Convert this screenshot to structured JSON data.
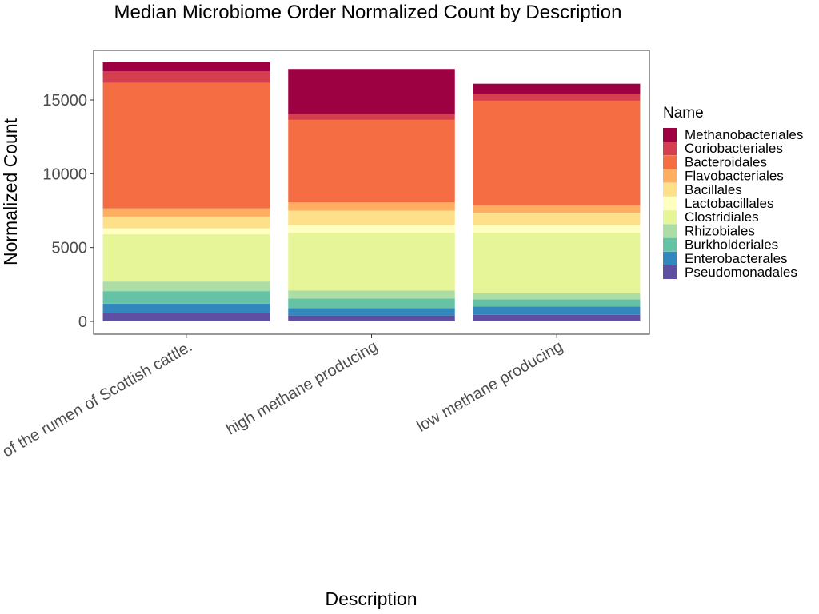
{
  "chart_data": {
    "type": "bar",
    "stacked": true,
    "title": "Median Microbiome Order Normalized Count by Description",
    "xlabel": "Description",
    "ylabel": "Normalized Count",
    "categories": [
      "y of the rumen of Scottish cattle.",
      "high methane producing",
      "low methane producing"
    ],
    "yticks": [
      0,
      5000,
      10000,
      15000
    ],
    "ylim": [
      -900,
      18400
    ],
    "grid": false,
    "legend": {
      "title": "Name",
      "placement": "right"
    },
    "series": [
      {
        "name": "Pseudomonadales",
        "color": "#5E4FA2",
        "values": [
          550,
          400,
          450
        ]
      },
      {
        "name": "Enterobacterales",
        "color": "#3288BD",
        "values": [
          650,
          500,
          550
        ]
      },
      {
        "name": "Burkholderiales",
        "color": "#66C2A5",
        "values": [
          850,
          650,
          500
        ]
      },
      {
        "name": "Rhizobiales",
        "color": "#ABDDA4",
        "values": [
          650,
          550,
          400
        ]
      },
      {
        "name": "Clostridiales",
        "color": "#E6F598",
        "values": [
          3200,
          3900,
          4100
        ]
      },
      {
        "name": "Lactobacillales",
        "color": "#FFFFBF",
        "values": [
          400,
          550,
          550
        ]
      },
      {
        "name": "Bacillales",
        "color": "#FEE08B",
        "values": [
          800,
          950,
          800
        ]
      },
      {
        "name": "Flavobacteriales",
        "color": "#FDAE61",
        "values": [
          550,
          550,
          500
        ]
      },
      {
        "name": "Bacteroidales",
        "color": "#F46D43",
        "values": [
          8500,
          5600,
          7100
        ]
      },
      {
        "name": "Coriobacteriales",
        "color": "#D53E4F",
        "values": [
          800,
          400,
          450
        ]
      },
      {
        "name": "Methanobacteriales",
        "color": "#9E0142",
        "values": [
          600,
          3050,
          700
        ]
      }
    ]
  }
}
